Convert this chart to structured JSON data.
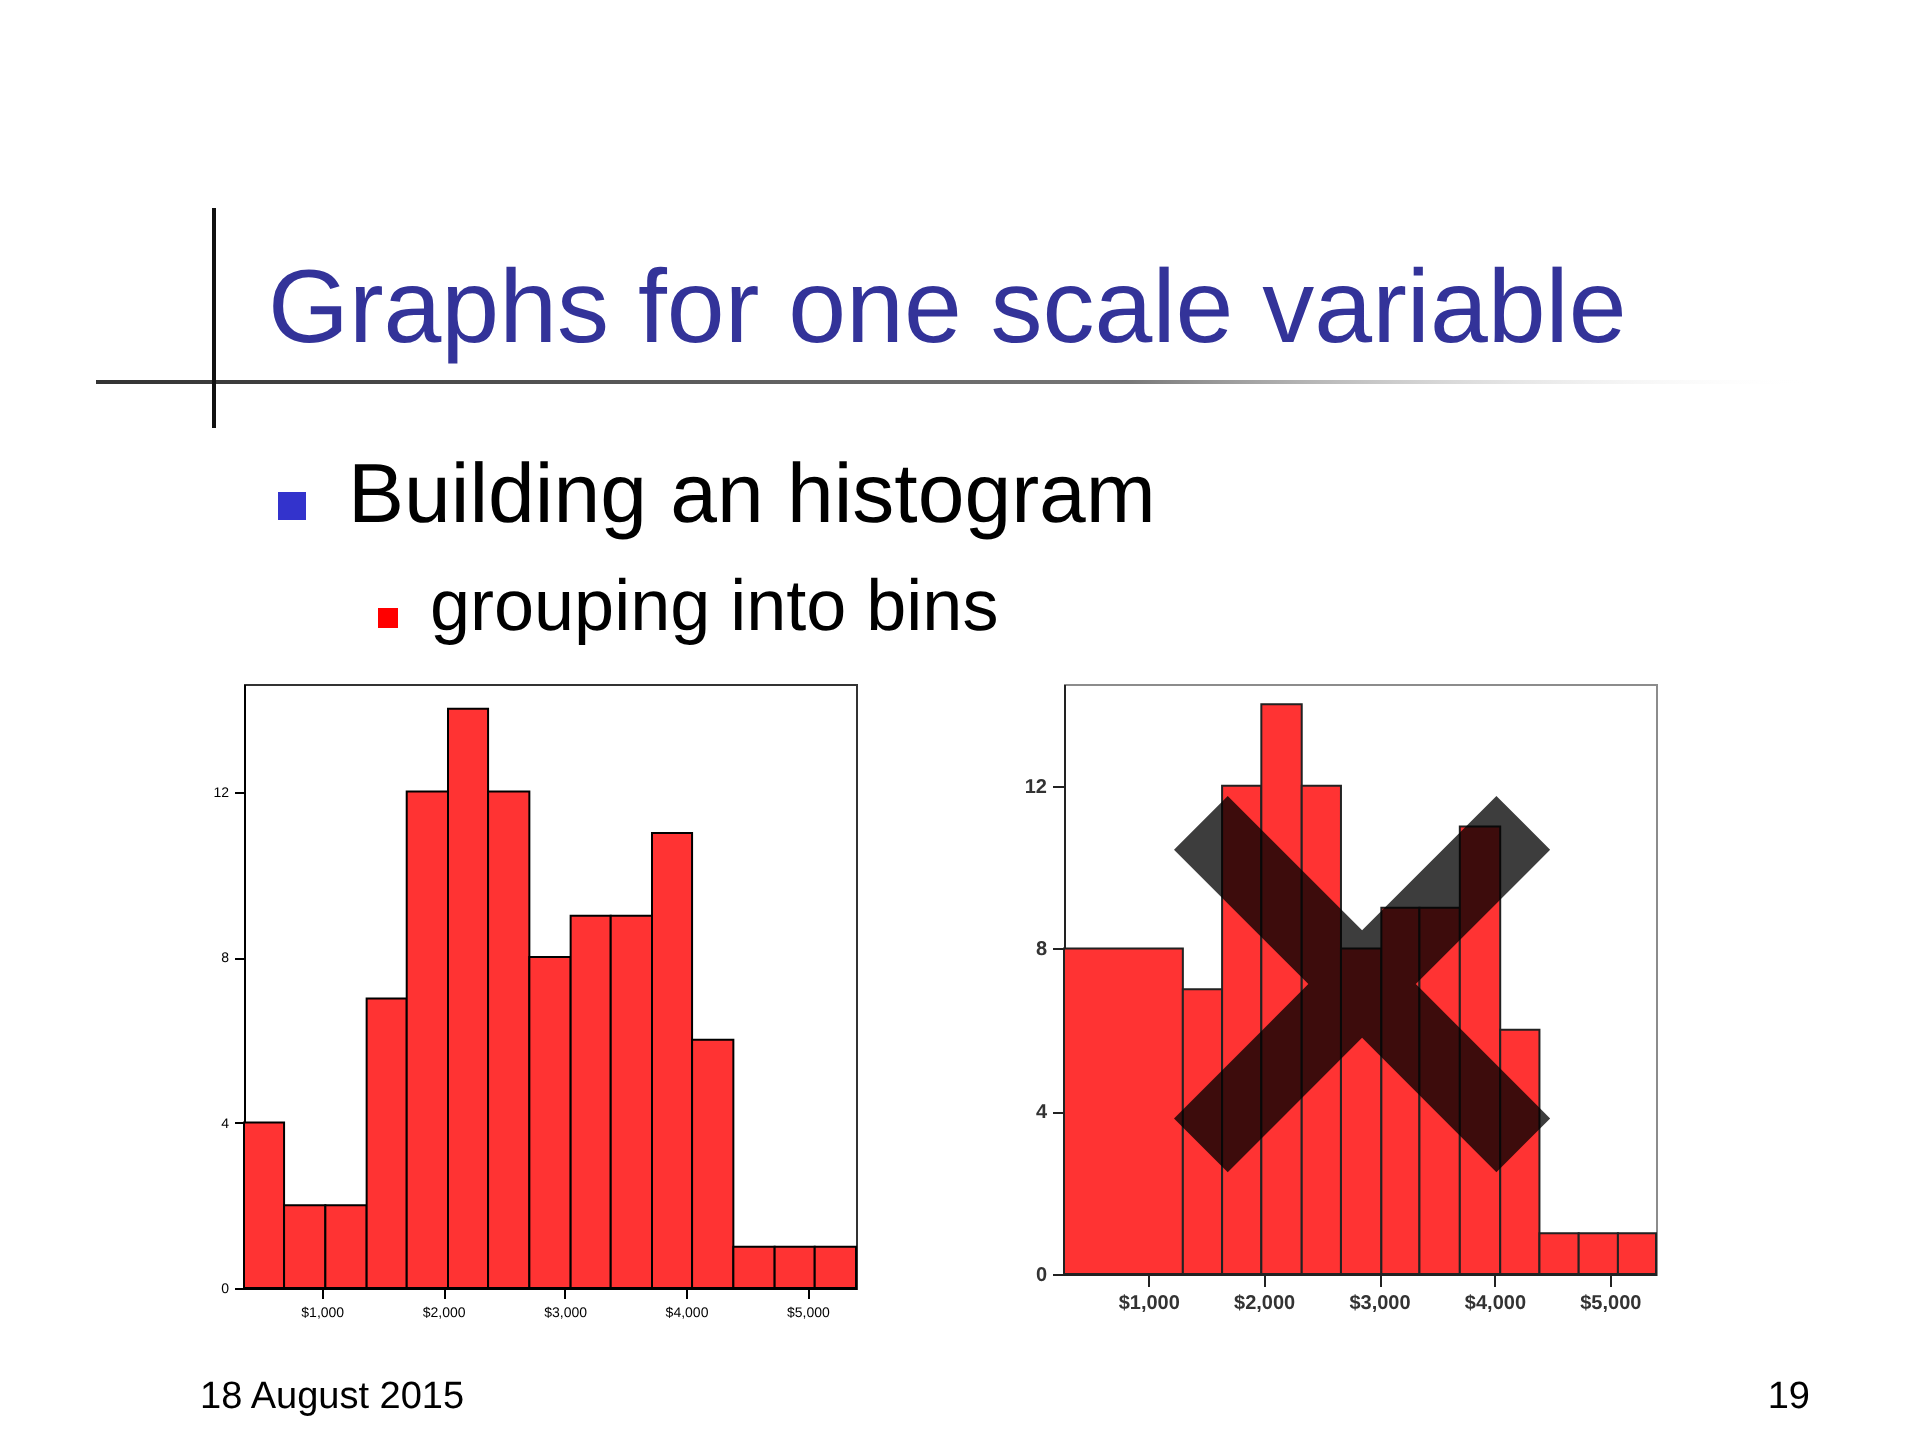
{
  "chart_data": [
    {
      "type": "histogram",
      "title": "Graphs for one scale variable",
      "annotations": [
        "Building an histogram",
        "grouping into bins",
        "18 August 2015",
        "19"
      ],
      "color": "#ff3333",
      "bins": [
        360,
        690,
        1030,
        1370,
        1700,
        2040,
        2370,
        2710,
        3050,
        3380,
        3720,
        4050,
        4390,
        4730,
        5060,
        5400
      ],
      "values": [
        4,
        2,
        2,
        7,
        12,
        14,
        12,
        8,
        9,
        9,
        11,
        6,
        1,
        1,
        1
      ],
      "xlim": [
        360,
        5400
      ],
      "xticks": [
        {
          "value": 1000,
          "label": "$1,000"
        },
        {
          "value": 2000,
          "label": "$2,000"
        },
        {
          "value": 3000,
          "label": "$3,000"
        },
        {
          "value": 4000,
          "label": "$4,000"
        },
        {
          "value": 5000,
          "label": "$5,000"
        }
      ],
      "ylim": [
        0,
        14.6
      ],
      "yticks": [
        0,
        4,
        8,
        12
      ]
    },
    {
      "type": "histogram",
      "color": "#ff3333",
      "bins": [
        270,
        1300,
        1640,
        1980,
        2330,
        2670,
        3020,
        3350,
        3700,
        4050,
        4390,
        4730,
        5070,
        5400
      ],
      "values": [
        8,
        7,
        12,
        14,
        12,
        8,
        9,
        9,
        11,
        6,
        1,
        1,
        1
      ],
      "xlim": [
        270,
        5400
      ],
      "xticks": [
        {
          "value": 1000,
          "label": "$1,000"
        },
        {
          "value": 2000,
          "label": "$2,000"
        },
        {
          "value": 3000,
          "label": "$3,000"
        },
        {
          "value": 4000,
          "label": "$4,000"
        },
        {
          "value": 5000,
          "label": "$5,000"
        }
      ],
      "ylim": [
        0,
        14.5
      ],
      "yticks": [
        0,
        4,
        8,
        12
      ]
    }
  ]
}
